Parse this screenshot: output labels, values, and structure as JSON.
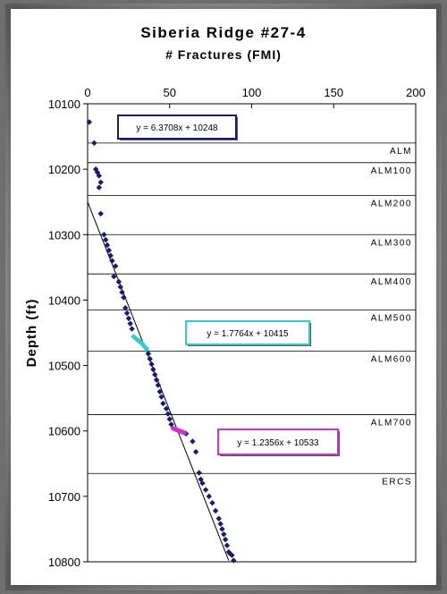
{
  "chart_data": {
    "type": "scatter",
    "title": "Siberia Ridge #27-4",
    "subtitle": "# Fractures (FMI)",
    "ylabel": "Depth (ft)",
    "xlim": [
      0,
      200
    ],
    "ylim": [
      10100,
      10800
    ],
    "y_inverted": true,
    "x_axis_position": "top",
    "x_ticks": [
      0,
      50,
      100,
      150,
      200
    ],
    "y_ticks": [
      10100,
      10200,
      10300,
      10400,
      10500,
      10600,
      10700,
      10800
    ],
    "grid": false,
    "zones": [
      {
        "name": "ALM",
        "depth": 10160
      },
      {
        "name": "ALM100",
        "depth": 10190
      },
      {
        "name": "ALM200",
        "depth": 10240
      },
      {
        "name": "ALM300",
        "depth": 10300
      },
      {
        "name": "ALM400",
        "depth": 10360
      },
      {
        "name": "ALM500",
        "depth": 10415
      },
      {
        "name": "ALM600",
        "depth": 10478
      },
      {
        "name": "ALM700",
        "depth": 10575
      },
      {
        "name": "ERCS",
        "depth": 10665
      }
    ],
    "trendlines": [
      {
        "equation": "y = 6.3708x + 10248",
        "slope": 6.3708,
        "intercept": 10248,
        "color": "#1a1a6e"
      },
      {
        "equation": "y = 1.7764x + 10415",
        "slope": 1.7764,
        "intercept": 10415,
        "color": "#33cccc"
      },
      {
        "equation": "y = 1.2356x + 10533",
        "slope": 1.2356,
        "intercept": 10533,
        "color": "#cc33cc"
      }
    ],
    "series": [
      {
        "color": "#1a1a6e",
        "points": [
          [
            1,
            10128
          ],
          [
            4,
            10160
          ],
          [
            5,
            10200
          ],
          [
            6,
            10205
          ],
          [
            7,
            10210
          ],
          [
            8,
            10220
          ],
          [
            7,
            10228
          ],
          [
            8,
            10268
          ],
          [
            10,
            10300
          ],
          [
            11,
            10308
          ],
          [
            12,
            10316
          ],
          [
            13,
            10324
          ],
          [
            14,
            10332
          ],
          [
            15,
            10340
          ],
          [
            17,
            10348
          ],
          [
            16,
            10364
          ],
          [
            19,
            10372
          ],
          [
            20,
            10380
          ],
          [
            21,
            10388
          ],
          [
            22,
            10396
          ],
          [
            23,
            10412
          ],
          [
            24,
            10420
          ],
          [
            25,
            10428
          ],
          [
            26,
            10436
          ],
          [
            27,
            10444
          ],
          [
            37,
            10482
          ],
          [
            38,
            10490
          ],
          [
            39,
            10498
          ],
          [
            40,
            10506
          ],
          [
            41,
            10514
          ],
          [
            42,
            10522
          ],
          [
            43,
            10530
          ],
          [
            44,
            10540
          ],
          [
            45,
            10548
          ],
          [
            46,
            10558
          ],
          [
            48,
            10566
          ],
          [
            49,
            10574
          ],
          [
            50,
            10582
          ],
          [
            51,
            10590
          ],
          [
            60,
            10604
          ],
          [
            64,
            10616
          ],
          [
            66,
            10632
          ],
          [
            68,
            10664
          ],
          [
            69,
            10674
          ],
          [
            70,
            10680
          ],
          [
            72,
            10690
          ],
          [
            74,
            10700
          ],
          [
            76,
            10710
          ],
          [
            78,
            10722
          ],
          [
            80,
            10734
          ],
          [
            81,
            10742
          ],
          [
            82,
            10750
          ],
          [
            83,
            10758
          ],
          [
            84,
            10766
          ],
          [
            85,
            10775
          ],
          [
            86,
            10785
          ],
          [
            87,
            10788
          ],
          [
            88,
            10790
          ],
          [
            89,
            10798
          ]
        ]
      },
      {
        "color": "#33cccc",
        "points": [
          [
            28,
            10456
          ],
          [
            29,
            10458
          ],
          [
            30,
            10460
          ],
          [
            31,
            10462
          ],
          [
            32,
            10464
          ],
          [
            33,
            10466
          ],
          [
            34,
            10469
          ],
          [
            35,
            10472
          ],
          [
            36,
            10475
          ]
        ]
      },
      {
        "color": "#cc33cc",
        "points": [
          [
            52,
            10596
          ],
          [
            53,
            10597
          ],
          [
            54,
            10598
          ],
          [
            55,
            10599
          ],
          [
            56,
            10600
          ],
          [
            57,
            10601
          ],
          [
            58,
            10602
          ],
          [
            59,
            10603
          ]
        ]
      }
    ]
  }
}
